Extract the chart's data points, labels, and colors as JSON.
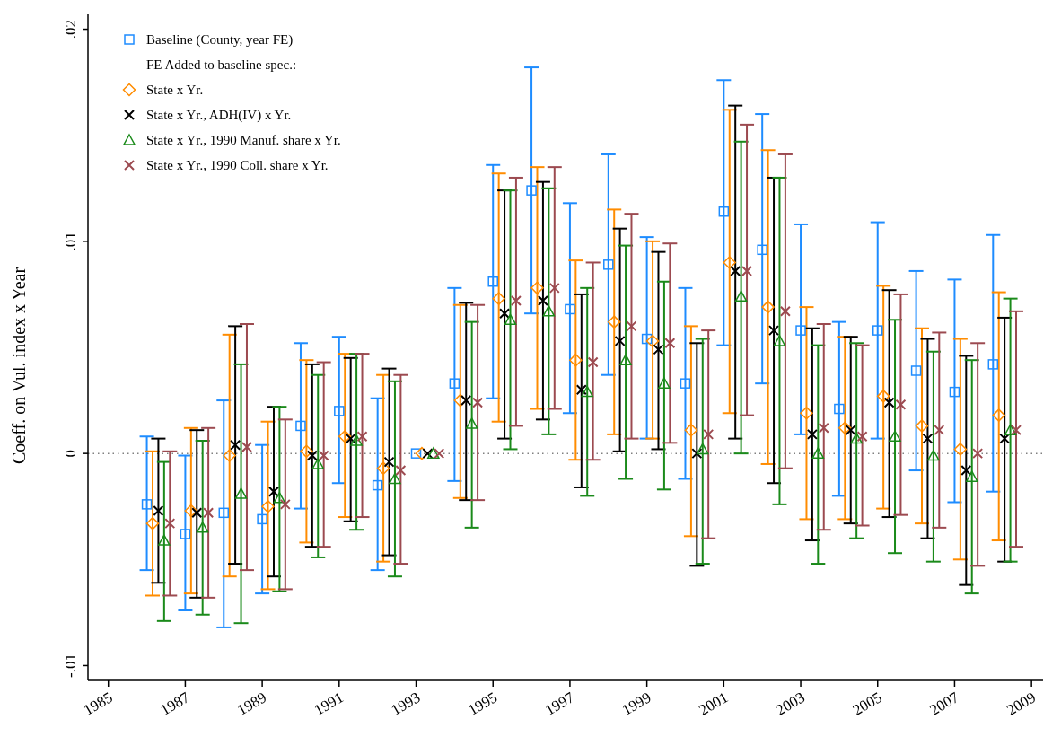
{
  "chart_data": {
    "type": "scatter",
    "ylabel": "Coeff. on Vul. index x Year",
    "legend_title": "FE Added to baseline spec.:",
    "legend": "top left",
    "xlim": [
      1984.47,
      2009.3
    ],
    "xticks": [
      1985,
      1987,
      1989,
      1991,
      1993,
      1995,
      1997,
      1999,
      2001,
      2003,
      2005,
      2007,
      2009
    ],
    "ylim": [
      -0.0107,
      0.0207
    ],
    "yticks": [
      {
        "value": -0.01,
        "label": "-.01"
      },
      {
        "value": 0,
        "label": "0"
      },
      {
        "value": 0.01,
        "label": ".01"
      },
      {
        "value": 0.02,
        "label": ".02"
      }
    ],
    "ref_lines": [
      {
        "axis": "y",
        "value": 0,
        "color": "#808080",
        "line_style": "dotted"
      }
    ],
    "series": [
      {
        "name": "Baseline (County, year FE)",
        "color": "#1e8cff",
        "marker": "square",
        "x": [
          1986,
          1987,
          1988,
          1989,
          1990,
          1991,
          1992,
          1993,
          1994,
          1995,
          1996,
          1997,
          1998,
          1999,
          2000,
          2001,
          2002,
          2003,
          2004,
          2005,
          2006,
          2007,
          2008
        ],
        "values": [
          -0.0024,
          -0.0038,
          -0.0028,
          -0.0031,
          0.0013,
          0.002,
          -0.0015,
          0,
          0.0033,
          0.0081,
          0.0124,
          0.0068,
          0.0089,
          0.0054,
          0.0033,
          0.0114,
          0.0096,
          0.0058,
          0.0021,
          0.0058,
          0.0039,
          0.0029,
          0.0042
        ],
        "errors": [
          [
            -0.0055,
            0.0008
          ],
          [
            -0.0074,
            -0.0001
          ],
          [
            -0.0082,
            0.0025
          ],
          [
            -0.0066,
            0.0004
          ],
          [
            -0.0026,
            0.0052
          ],
          [
            -0.0014,
            0.0055
          ],
          [
            -0.0055,
            0.0026
          ],
          null,
          [
            -0.0013,
            0.0078
          ],
          [
            0.0026,
            0.0136
          ],
          [
            0.0066,
            0.0182
          ],
          [
            0.0019,
            0.0118
          ],
          [
            0.0037,
            0.0141
          ],
          [
            0.0007,
            0.0102
          ],
          [
            -0.0012,
            0.0078
          ],
          [
            0.0051,
            0.0176
          ],
          [
            0.0033,
            0.016
          ],
          [
            0.0009,
            0.0108
          ],
          [
            -0.002,
            0.0062
          ],
          [
            0.0007,
            0.0109
          ],
          [
            -0.0008,
            0.0086
          ],
          [
            -0.0023,
            0.0082
          ],
          [
            -0.0018,
            0.0103
          ]
        ]
      },
      {
        "name": "State x Yr.",
        "color": "#ff8c00",
        "marker": "diamond",
        "x": [
          1986.15,
          1987.15,
          1988.15,
          1989.15,
          1990.15,
          1991.15,
          1992.15,
          1993.15,
          1994.15,
          1995.15,
          1996.15,
          1997.15,
          1998.15,
          1999.15,
          2000.15,
          2001.15,
          2002.15,
          2003.15,
          2004.15,
          2005.15,
          2006.15,
          2007.15,
          2008.15
        ],
        "values": [
          -0.0033,
          -0.0027,
          -0.0001,
          -0.0025,
          0.0001,
          0.0008,
          -0.0007,
          0,
          0.0025,
          0.0073,
          0.0078,
          0.0044,
          0.0062,
          0.0053,
          0.0011,
          0.009,
          0.0069,
          0.0019,
          0.0012,
          0.0027,
          0.0013,
          0.0002,
          0.0018
        ],
        "errors": [
          [
            -0.0067,
            0.0001
          ],
          [
            -0.0066,
            0.0012
          ],
          [
            -0.0058,
            0.0056
          ],
          [
            -0.0064,
            0.0015
          ],
          [
            -0.0042,
            0.0044
          ],
          [
            -0.003,
            0.0047
          ],
          [
            -0.0051,
            0.0037
          ],
          null,
          [
            -0.0021,
            0.007
          ],
          [
            0.0015,
            0.0132
          ],
          [
            0.0021,
            0.0135
          ],
          [
            -0.0003,
            0.0091
          ],
          [
            0.0009,
            0.0115
          ],
          [
            0.0007,
            0.01
          ],
          [
            -0.0039,
            0.006
          ],
          [
            0.0019,
            0.0162
          ],
          [
            -0.0005,
            0.0143
          ],
          [
            -0.0031,
            0.0069
          ],
          [
            -0.0031,
            0.0055
          ],
          [
            -0.0026,
            0.0079
          ],
          [
            -0.0033,
            0.0059
          ],
          [
            -0.005,
            0.0054
          ],
          [
            -0.0041,
            0.0076
          ]
        ]
      },
      {
        "name": "State x Yr., ADH(IV) x Yr.",
        "color": "#000000",
        "marker": "cross",
        "x": [
          1986.3,
          1987.3,
          1988.3,
          1989.3,
          1990.3,
          1991.3,
          1992.3,
          1993.3,
          1994.3,
          1995.3,
          1996.3,
          1997.3,
          1998.3,
          1999.3,
          2000.3,
          2001.3,
          2002.3,
          2003.3,
          2004.3,
          2005.3,
          2006.3,
          2007.3,
          2008.3
        ],
        "values": [
          -0.0027,
          -0.0028,
          0.0004,
          -0.0018,
          -0.0001,
          0.0007,
          -0.0004,
          0,
          0.0025,
          0.0066,
          0.0072,
          0.003,
          0.0053,
          0.0049,
          0,
          0.0086,
          0.0058,
          0.0009,
          0.0011,
          0.0024,
          0.0007,
          -0.0008,
          0.0007
        ],
        "errors": [
          [
            -0.0061,
            0.0007
          ],
          [
            -0.0068,
            0.0011
          ],
          [
            -0.0052,
            0.006
          ],
          [
            -0.0058,
            0.0022
          ],
          [
            -0.0044,
            0.0042
          ],
          [
            -0.0032,
            0.0045
          ],
          [
            -0.0048,
            0.004
          ],
          null,
          [
            -0.0022,
            0.0071
          ],
          [
            0.0007,
            0.0124
          ],
          [
            0.0016,
            0.0128
          ],
          [
            -0.0016,
            0.0075
          ],
          [
            0.0001,
            0.0106
          ],
          [
            0.0002,
            0.0095
          ],
          [
            -0.0053,
            0.0052
          ],
          [
            0.0007,
            0.0164
          ],
          [
            -0.0014,
            0.013
          ],
          [
            -0.0041,
            0.0059
          ],
          [
            -0.0033,
            0.0055
          ],
          [
            -0.003,
            0.0077
          ],
          [
            -0.004,
            0.0054
          ],
          [
            -0.0062,
            0.0046
          ],
          [
            -0.0051,
            0.0064
          ]
        ]
      },
      {
        "name": "State x Yr., 1990 Manuf. share x Yr.",
        "color": "#1a8a1a",
        "marker": "triangle",
        "x": [
          1986.45,
          1987.45,
          1988.45,
          1989.45,
          1990.45,
          1991.45,
          1992.45,
          1993.45,
          1994.45,
          1995.45,
          1996.45,
          1997.45,
          1998.45,
          1999.45,
          2000.45,
          2001.45,
          2002.45,
          2003.45,
          2004.45,
          2005.45,
          2006.45,
          2007.45,
          2008.45
        ],
        "values": [
          -0.0041,
          -0.0035,
          -0.0019,
          -0.0021,
          -0.0005,
          0.0006,
          -0.0012,
          0,
          0.0014,
          0.0063,
          0.0067,
          0.0029,
          0.0044,
          0.0033,
          0.0002,
          0.0074,
          0.0053,
          0,
          0.0007,
          0.0008,
          -0.0001,
          -0.0011,
          0.0011
        ],
        "errors": [
          [
            -0.0079,
            -0.0004
          ],
          [
            -0.0076,
            0.0006
          ],
          [
            -0.008,
            0.0042
          ],
          [
            -0.0065,
            0.0022
          ],
          [
            -0.0049,
            0.0037
          ],
          [
            -0.0036,
            0.0047
          ],
          [
            -0.0058,
            0.0034
          ],
          null,
          [
            -0.0035,
            0.0062
          ],
          [
            0.0002,
            0.0124
          ],
          [
            0.0009,
            0.0125
          ],
          [
            -0.002,
            0.0078
          ],
          [
            -0.0012,
            0.0098
          ],
          [
            -0.0017,
            0.0081
          ],
          [
            -0.0052,
            0.0054
          ],
          [
            0,
            0.0147
          ],
          [
            -0.0024,
            0.013
          ],
          [
            -0.0052,
            0.0051
          ],
          [
            -0.004,
            0.0052
          ],
          [
            -0.0047,
            0.0063
          ],
          [
            -0.0051,
            0.0048
          ],
          [
            -0.0066,
            0.0044
          ],
          [
            -0.0051,
            0.0073
          ]
        ]
      },
      {
        "name": "State x Yr., 1990 Coll. share x Yr.",
        "color": "#9c4a50",
        "marker": "cross",
        "x": [
          1986.6,
          1987.6,
          1988.6,
          1989.6,
          1990.6,
          1991.6,
          1992.6,
          1993.6,
          1994.6,
          1995.6,
          1996.6,
          1997.6,
          1998.6,
          1999.6,
          2000.6,
          2001.6,
          2002.6,
          2003.6,
          2004.6,
          2005.6,
          2006.6,
          2007.6,
          2008.6
        ],
        "values": [
          -0.0033,
          -0.0028,
          0.0003,
          -0.0024,
          -0.0001,
          0.0008,
          -0.0008,
          0,
          0.0024,
          0.0072,
          0.0078,
          0.0043,
          0.006,
          0.0052,
          0.0009,
          0.0086,
          0.0067,
          0.0012,
          0.0008,
          0.0023,
          0.0011,
          0,
          0.0011
        ],
        "errors": [
          [
            -0.0067,
            0.0001
          ],
          [
            -0.0068,
            0.0012
          ],
          [
            -0.0055,
            0.0061
          ],
          [
            -0.0064,
            0.0016
          ],
          [
            -0.0044,
            0.0043
          ],
          [
            -0.003,
            0.0047
          ],
          [
            -0.0052,
            0.0037
          ],
          null,
          [
            -0.0022,
            0.007
          ],
          [
            0.0013,
            0.013
          ],
          [
            0.0021,
            0.0135
          ],
          [
            -0.0003,
            0.009
          ],
          [
            0.0007,
            0.0113
          ],
          [
            0.0005,
            0.0099
          ],
          [
            -0.004,
            0.0058
          ],
          [
            0.0018,
            0.0155
          ],
          [
            -0.0007,
            0.0141
          ],
          [
            -0.0036,
            0.0061
          ],
          [
            -0.0034,
            0.0051
          ],
          [
            -0.0029,
            0.0075
          ],
          [
            -0.0035,
            0.0057
          ],
          [
            -0.0053,
            0.0052
          ],
          [
            -0.0044,
            0.0067
          ]
        ]
      }
    ]
  }
}
